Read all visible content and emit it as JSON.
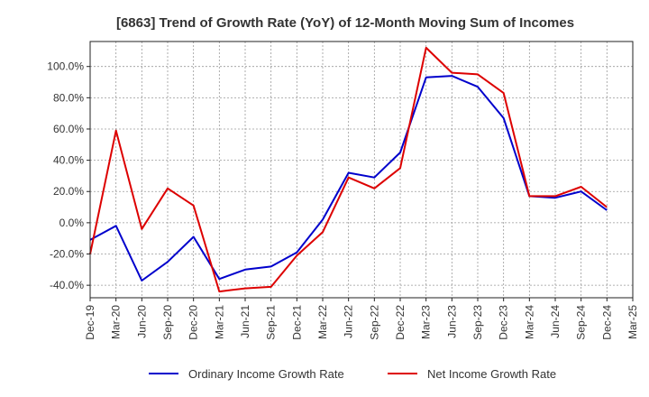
{
  "chart_data": {
    "type": "line",
    "title": "[6863]  Trend of Growth Rate (YoY) of 12-Month Moving Sum of Incomes",
    "xlabel": "",
    "ylabel": "",
    "x_tick_labels": [
      "Dec-19",
      "Mar-20",
      "Jun-20",
      "Sep-20",
      "Dec-20",
      "Mar-21",
      "Jun-21",
      "Sep-21",
      "Dec-21",
      "Mar-22",
      "Jun-22",
      "Sep-22",
      "Dec-22",
      "Mar-23",
      "Jun-23",
      "Sep-23",
      "Dec-23",
      "Mar-24",
      "Jun-24",
      "Sep-24",
      "Dec-24",
      "Mar-25"
    ],
    "y_ticks": [
      -40,
      -20,
      0,
      20,
      40,
      60,
      80,
      100
    ],
    "y_tick_labels": [
      "-40.0%",
      "-20.0%",
      "0.0%",
      "20.0%",
      "40.0%",
      "60.0%",
      "80.0%",
      "100.0%"
    ],
    "ylim": [
      -48,
      116
    ],
    "grid": true,
    "legend_position": "bottom",
    "series": [
      {
        "name": "Ordinary Income Growth Rate",
        "color": "#0000cc",
        "values": [
          -11,
          -2,
          -37,
          -25,
          -9,
          -36,
          -30,
          -28,
          -19,
          2,
          32,
          29,
          45,
          93,
          94,
          87,
          67,
          17,
          16,
          20,
          8,
          null
        ]
      },
      {
        "name": "Net Income Growth Rate",
        "color": "#dd0000",
        "values": [
          -20,
          59,
          -4,
          22,
          11,
          -44,
          -42,
          -41,
          -21,
          -6,
          29,
          22,
          35,
          112,
          96,
          95,
          83,
          17,
          17,
          23,
          10,
          null
        ]
      }
    ]
  }
}
